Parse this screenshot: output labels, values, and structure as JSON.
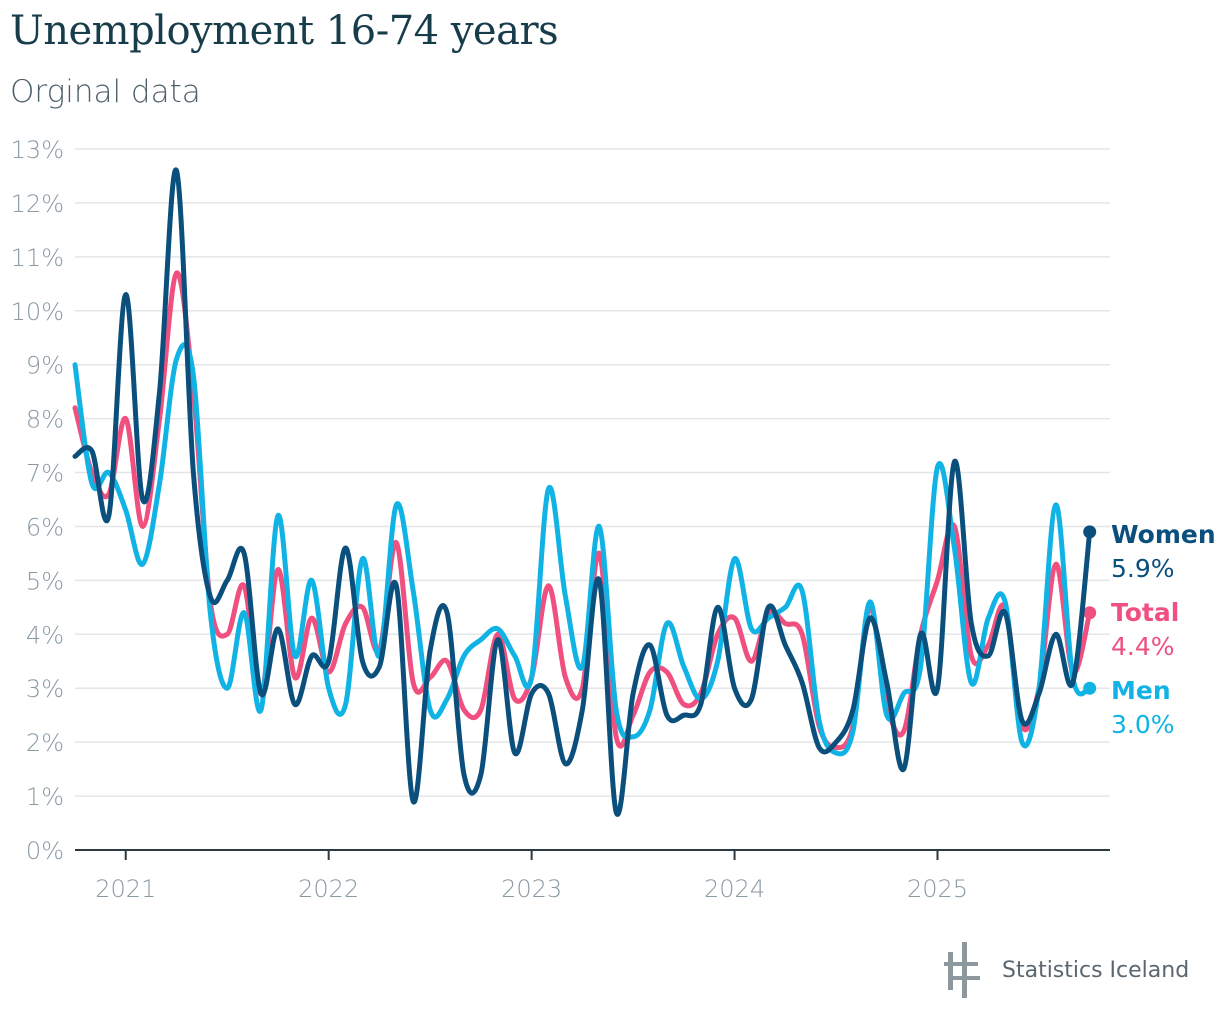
{
  "title": "Unemployment 16-74 years",
  "subtitle": "Orginal data",
  "footer": {
    "brand": "Statistics Iceland",
    "logo_icon": "statistics-iceland-logo-icon"
  },
  "colors": {
    "women": "#0b4f7c",
    "total": "#f0507f",
    "men": "#11b3e4",
    "axis": "#8a9aa3",
    "grid": "#e3e6e8"
  },
  "chart_data": {
    "type": "line",
    "title": "Unemployment 16-74 years",
    "subtitle": "Orginal data",
    "xlabel": "",
    "ylabel": "",
    "ylim": [
      0,
      13
    ],
    "yticks": [
      0,
      1,
      2,
      3,
      4,
      5,
      6,
      7,
      8,
      9,
      10,
      11,
      12,
      13
    ],
    "ytick_labels": [
      "0%",
      "1%",
      "2%",
      "3%",
      "4%",
      "5%",
      "6%",
      "7%",
      "8%",
      "9%",
      "10%",
      "11%",
      "12%",
      "13%"
    ],
    "xlim": [
      2020.75,
      2025.85
    ],
    "xticks": [
      2021,
      2022,
      2023,
      2024,
      2025
    ],
    "xtick_labels": [
      "2021",
      "2022",
      "2023",
      "2024",
      "2025"
    ],
    "grid": true,
    "legend": "end-of-line labels, right",
    "x_start": 2020.75,
    "x_step_months": 1,
    "series": [
      {
        "name": "Total",
        "end_label": "Total",
        "end_value_label": "4.4%",
        "values": [
          8.2,
          7.0,
          6.6,
          8.0,
          6.0,
          8.0,
          10.7,
          8.5,
          4.6,
          4.0,
          4.9,
          2.9,
          5.2,
          3.2,
          4.3,
          3.3,
          4.2,
          4.5,
          3.7,
          5.7,
          3.1,
          3.2,
          3.5,
          2.6,
          2.6,
          4.0,
          2.8,
          3.2,
          4.9,
          3.2,
          3.0,
          5.5,
          2.1,
          2.5,
          3.3,
          3.3,
          2.7,
          2.9,
          4.0,
          4.3,
          3.5,
          4.4,
          4.2,
          4.0,
          2.3,
          1.9,
          2.3,
          4.5,
          2.7,
          2.2,
          4.0,
          5.0,
          6.0,
          3.6,
          3.8,
          4.5,
          2.3,
          3.0,
          5.3,
          3.3,
          4.4
        ]
      },
      {
        "name": "Men",
        "end_label": "Men",
        "end_value_label": "3.0%",
        "values": [
          9.0,
          6.8,
          7.0,
          6.3,
          5.3,
          6.8,
          9.1,
          8.8,
          4.4,
          3.0,
          4.4,
          2.6,
          6.2,
          3.6,
          5.0,
          3.0,
          2.7,
          5.4,
          3.6,
          6.4,
          4.8,
          2.6,
          2.8,
          3.6,
          3.9,
          4.1,
          3.6,
          3.2,
          6.7,
          4.7,
          3.4,
          6.0,
          2.6,
          2.1,
          2.6,
          4.2,
          3.4,
          2.8,
          3.5,
          5.4,
          4.1,
          4.3,
          4.5,
          4.8,
          2.4,
          1.8,
          2.2,
          4.6,
          2.5,
          2.9,
          3.4,
          7.1,
          5.6,
          3.1,
          4.3,
          4.6,
          2.0,
          3.0,
          6.4,
          3.2,
          3.0
        ]
      },
      {
        "name": "Women",
        "end_label": "Women",
        "end_value_label": "5.9%",
        "values": [
          7.3,
          7.4,
          6.2,
          10.3,
          6.5,
          8.5,
          12.6,
          7.0,
          4.7,
          5.0,
          5.5,
          2.9,
          4.1,
          2.7,
          3.6,
          3.5,
          5.6,
          3.5,
          3.4,
          4.9,
          0.9,
          3.7,
          4.4,
          1.4,
          1.4,
          3.9,
          1.8,
          2.9,
          2.9,
          1.6,
          2.6,
          5.0,
          0.7,
          2.9,
          3.8,
          2.5,
          2.5,
          2.7,
          4.5,
          3.0,
          2.8,
          4.5,
          3.8,
          3.1,
          1.9,
          2.0,
          2.6,
          4.3,
          3.1,
          1.5,
          4.0,
          3.0,
          7.2,
          4.2,
          3.6,
          4.4,
          2.4,
          2.9,
          4.0,
          3.1,
          5.9
        ]
      }
    ]
  }
}
